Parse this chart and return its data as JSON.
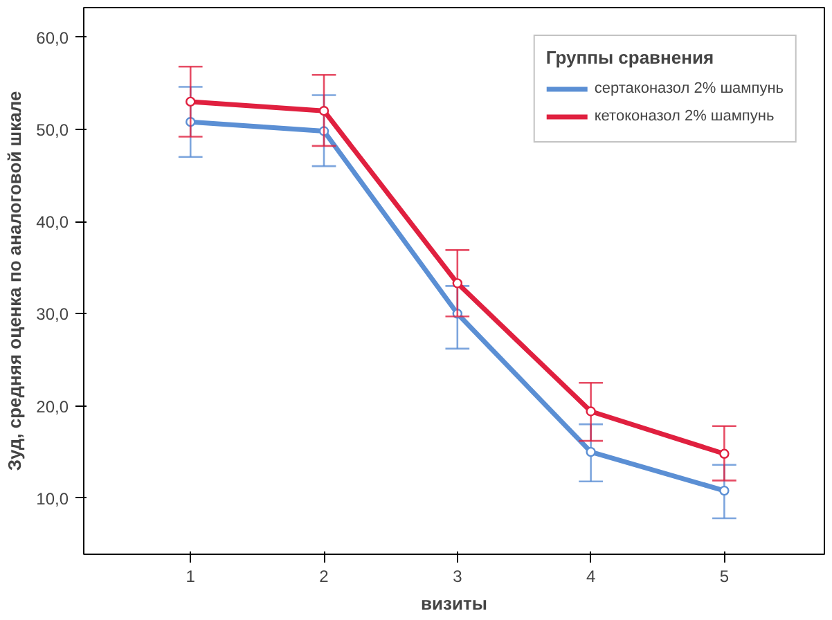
{
  "chart_data": {
    "type": "line",
    "xlabel": "визиты",
    "ylabel": "Зуд, средняя оценка по аналоговой шкале",
    "legend_title": "Группы сравнения",
    "x": [
      1,
      2,
      3,
      4,
      5
    ],
    "series": [
      {
        "name": "сертаконазол 2% шампунь",
        "color": "#5b8fd4",
        "values": [
          50.8,
          49.8,
          30.0,
          15.0,
          10.8
        ],
        "errors": [
          [
            47.0,
            54.6
          ],
          [
            46.0,
            53.7
          ],
          [
            26.2,
            33.0
          ],
          [
            11.8,
            18.0
          ],
          [
            7.8,
            13.6
          ]
        ]
      },
      {
        "name": "кетоконазол 2% шампунь",
        "color": "#e0203f",
        "values": [
          53.0,
          52.0,
          33.3,
          19.4,
          14.8
        ],
        "errors": [
          [
            49.2,
            56.8
          ],
          [
            48.2,
            55.9
          ],
          [
            29.7,
            36.9
          ],
          [
            16.2,
            22.5
          ],
          [
            11.9,
            17.8
          ]
        ]
      }
    ],
    "xlim": [
      0.2,
      5.75
    ],
    "ylim": [
      3.9,
      63.2
    ],
    "xticks": [
      1,
      2,
      3,
      4,
      5
    ],
    "yticks": [
      {
        "value": 10,
        "label": "10,0"
      },
      {
        "value": 20,
        "label": "20,0"
      },
      {
        "value": 30,
        "label": "30,0"
      },
      {
        "value": 40,
        "label": "40,0"
      },
      {
        "value": 50,
        "label": "50,0"
      },
      {
        "value": 60,
        "label": "60,0"
      }
    ],
    "legend": "top right",
    "grid": false,
    "marker": "circle",
    "line_style": "solid"
  }
}
